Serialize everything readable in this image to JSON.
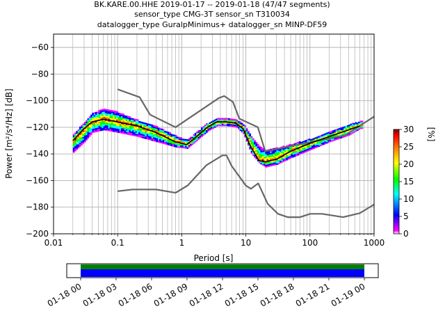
{
  "chart_data": [
    {
      "type": "heatmap",
      "title_lines": [
        "BK.KARE.00.HHE   2019-01-17 -- 2019-01-18  (47/47 segments)",
        "sensor_type CMG-3T sensor_sn T310034",
        "datalogger_type GuralpMinimus+ datalogger_sn MINP-DF59"
      ],
      "xlabel": "Period [s]",
      "ylabel": "Power [m²/s⁴/Hz] [dB]",
      "xscale": "log",
      "xlim": [
        0.01,
        1000
      ],
      "ylim": [
        -200,
        -50
      ],
      "xticks": [
        0.01,
        0.1,
        1,
        10,
        100,
        1000
      ],
      "xtick_labels": [
        "0.01",
        "0.1",
        "1",
        "10",
        "100",
        "1000"
      ],
      "yticks": [
        -200,
        -180,
        -160,
        -140,
        -120,
        -100,
        -80,
        -60
      ],
      "ytick_labels": [
        "−200",
        "−180",
        "−160",
        "−140",
        "−120",
        "−100",
        "−80",
        "−60"
      ],
      "grid": true,
      "colorbar": {
        "label": "[%]",
        "range": [
          0,
          30
        ],
        "ticks": [
          0,
          5,
          10,
          15,
          20,
          25,
          30
        ],
        "colors": [
          "#ffffff",
          "#ff00ff",
          "#0000ff",
          "#00ffff",
          "#00ff00",
          "#ffff00",
          "#ff8000",
          "#ff0000",
          "#800000"
        ]
      },
      "noise_model_high": {
        "period": [
          0.1,
          0.22,
          0.32,
          0.8,
          3.8,
          4.6,
          6.3,
          7.9,
          15.4,
          20,
          354.8,
          1000
        ],
        "db": [
          -91.5,
          -97.4,
          -110.5,
          -120,
          -98,
          -96.5,
          -101,
          -113.5,
          -120,
          -138,
          -126,
          -112
        ]
      },
      "noise_model_low": {
        "period": [
          0.1,
          0.17,
          0.4,
          0.8,
          1.24,
          2.4,
          4.3,
          5,
          6,
          10,
          12,
          15.6,
          21.9,
          31.6,
          45,
          70,
          101,
          154,
          328,
          600,
          1000
        ],
        "db": [
          -168,
          -166.7,
          -166.7,
          -169.2,
          -163.7,
          -148.6,
          -141.1,
          -141.1,
          -149,
          -163.8,
          -166.2,
          -162.1,
          -177.5,
          -185,
          -187.5,
          -187.5,
          -185,
          -185,
          -187.5,
          -184.5,
          -178
        ]
      },
      "mode_curve": {
        "period": [
          0.02,
          0.03,
          0.04,
          0.06,
          0.1,
          0.2,
          0.4,
          0.8,
          1.2,
          1.6,
          2.5,
          3.5,
          5,
          7,
          9,
          12,
          16,
          20,
          30,
          50,
          100,
          200,
          400,
          600
        ],
        "db": [
          -130,
          -121,
          -116,
          -114,
          -116,
          -119,
          -124,
          -131,
          -133,
          -128,
          -120,
          -116,
          -116,
          -117,
          -121,
          -135,
          -145,
          -146,
          -144,
          -138,
          -132,
          -127,
          -122,
          -119
        ]
      },
      "spread_upper": {
        "period": [
          0.02,
          0.03,
          0.04,
          0.06,
          0.1,
          0.2,
          0.4,
          0.8,
          1.2,
          1.6,
          2.5,
          3.5,
          5,
          7,
          9,
          12,
          16,
          20,
          30,
          50,
          100,
          200,
          400,
          600
        ],
        "db": [
          -126,
          -116,
          -110,
          -106,
          -109,
          -115,
          -120,
          -127,
          -130,
          -125,
          -117,
          -114,
          -114,
          -115,
          -118,
          -127,
          -135,
          -138,
          -136,
          -133,
          -129,
          -124,
          -118,
          -116
        ]
      },
      "spread_lower": {
        "period": [
          0.02,
          0.03,
          0.04,
          0.06,
          0.1,
          0.2,
          0.4,
          0.8,
          1.2,
          1.6,
          2.5,
          3.5,
          5,
          7,
          9,
          12,
          16,
          20,
          30,
          50,
          100,
          200,
          400,
          600
        ],
        "db": [
          -139,
          -131,
          -124,
          -122,
          -124,
          -127,
          -131,
          -135,
          -136,
          -131,
          -123,
          -119,
          -119,
          -120,
          -125,
          -140,
          -147,
          -150,
          -148,
          -143,
          -137,
          -131,
          -126,
          -121
        ]
      }
    },
    {
      "type": "timeline",
      "tick_labels": [
        "01-18 00",
        "01-18 03",
        "01-18 06",
        "01-18 09",
        "01-18 12",
        "01-18 15",
        "01-18 18",
        "01-18 21",
        "01-19 00"
      ],
      "bars": [
        {
          "color": "#008000"
        },
        {
          "color": "#0000ff"
        }
      ]
    }
  ]
}
